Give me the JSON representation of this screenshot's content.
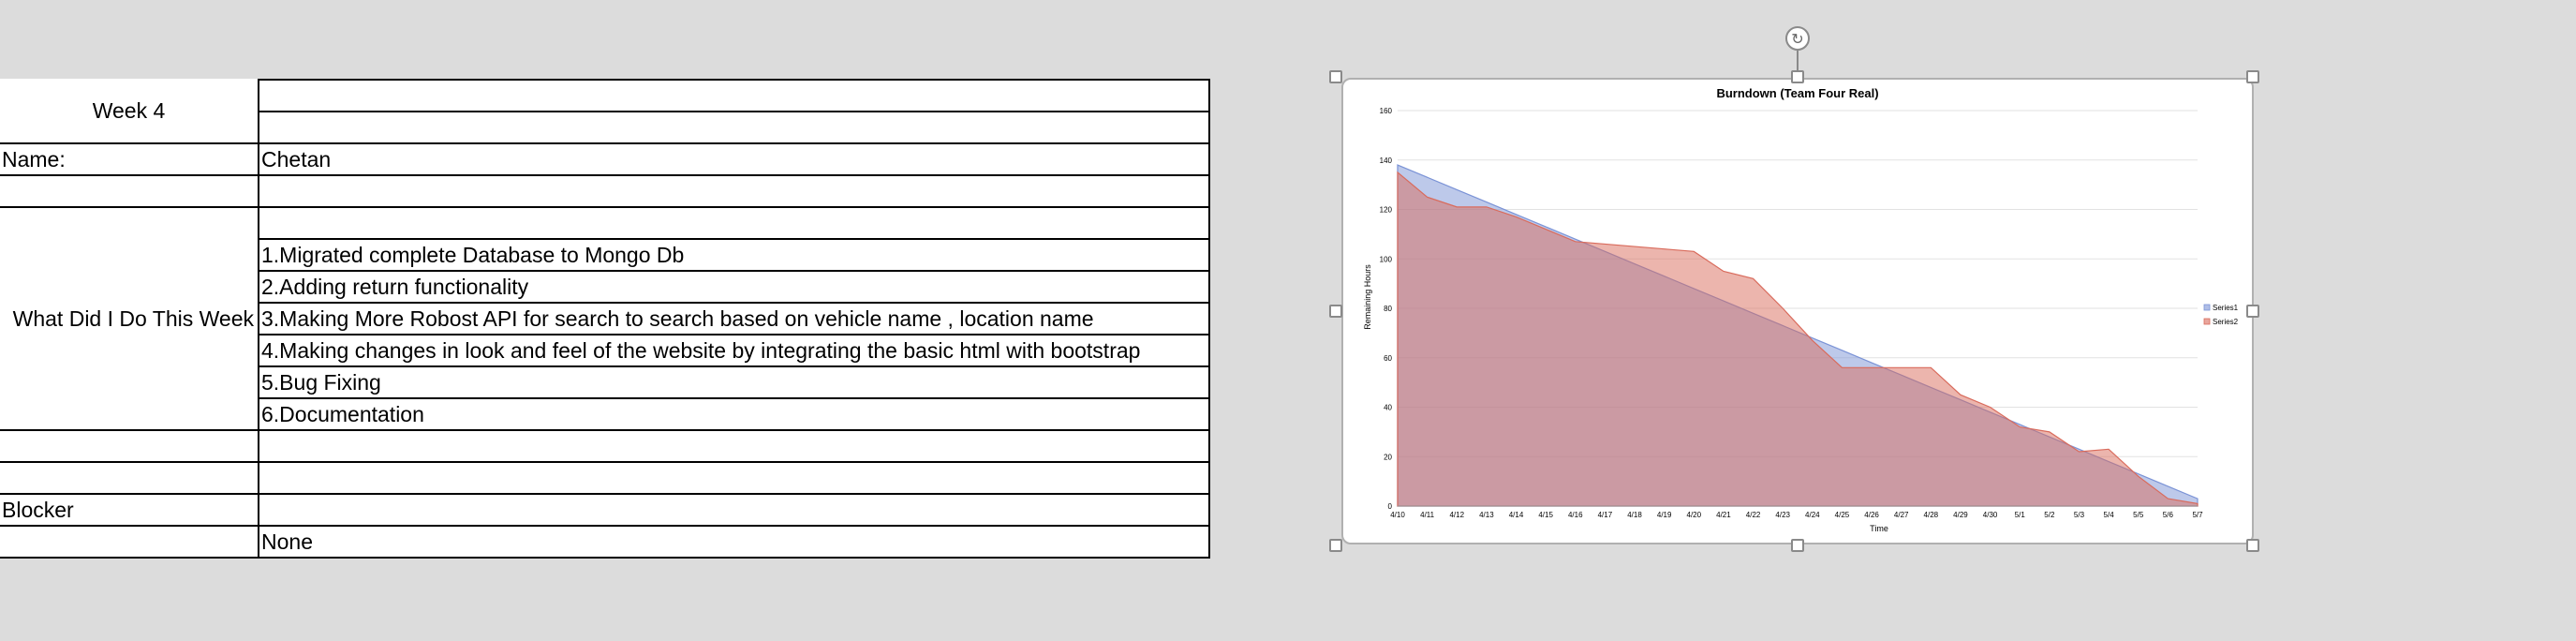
{
  "sheet": {
    "week_label": "Week 4",
    "name_label": "Name:",
    "name_value": "Chetan",
    "section_label": "What Did I Do This Week",
    "tasks": [
      "1.Migrated complete Database to Mongo Db",
      "2.Adding return functionality",
      "3.Making More Robost API for search to search based on vehicle name , location name",
      "4.Making changes in look and feel of the website by integrating the basic html with bootstrap",
      "5.Bug Fixing",
      "6.Documentation"
    ],
    "blocker_label": "Blocker",
    "blocker_value": "None"
  },
  "chart_data": {
    "type": "area",
    "title": "Burndown (Team Four Real)",
    "xlabel": "Time",
    "ylabel": "Remaining Hours",
    "ylim": [
      0,
      160
    ],
    "yticks": [
      0,
      20,
      40,
      60,
      80,
      100,
      120,
      140,
      160
    ],
    "grid": true,
    "legend_position": "right",
    "categories": [
      "4/10",
      "4/11",
      "4/12",
      "4/13",
      "4/14",
      "4/15",
      "4/16",
      "4/17",
      "4/18",
      "4/19",
      "4/20",
      "4/21",
      "4/22",
      "4/23",
      "4/24",
      "4/25",
      "4/26",
      "4/27",
      "4/28",
      "4/29",
      "4/30",
      "5/1",
      "5/2",
      "5/3",
      "5/4",
      "5/5",
      "5/6",
      "5/7"
    ],
    "series": [
      {
        "name": "Series1",
        "color": "#7b93d6",
        "values": [
          138,
          133,
          128,
          123,
          118,
          113,
          108,
          103,
          98,
          93,
          88,
          83,
          78,
          73,
          68,
          63,
          58,
          53,
          48,
          43,
          38,
          33,
          28,
          23,
          18,
          13,
          8,
          3
        ]
      },
      {
        "name": "Series2",
        "color": "#d96b5c",
        "values": [
          135,
          125,
          121,
          121,
          117,
          112,
          107,
          106,
          105,
          104,
          103,
          95,
          92,
          80,
          67,
          56,
          56,
          56,
          56,
          45,
          40,
          32,
          30,
          22,
          23,
          12,
          3,
          1
        ]
      }
    ]
  }
}
